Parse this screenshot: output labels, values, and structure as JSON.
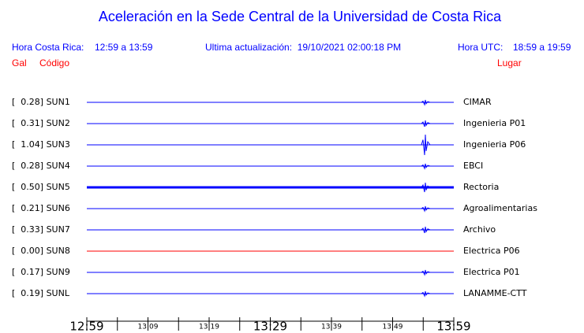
{
  "header": {
    "title": "Aceleración en la Sede Central de la Universidad de Costa Rica",
    "local_label": "Hora Costa Rica:",
    "local_range": "12:59 a 13:59",
    "updated": "Ultima actualización:  19/10/2021 02:00:18 PM",
    "utc_label": "Hora UTC:",
    "utc_range": "18:59 a 19:59",
    "col_gal": "Gal",
    "col_code": "Código",
    "col_place": "Lugar"
  },
  "rows": [
    {
      "label": "[  0.28] SUN1",
      "place": "CIMAR"
    },
    {
      "label": "[  0.31] SUN2",
      "place": "Ingenieria P01"
    },
    {
      "label": "[  1.04] SUN3",
      "place": "Ingenieria P06"
    },
    {
      "label": "[  0.28] SUN4",
      "place": "EBCI"
    },
    {
      "label": "[  0.50] SUN5",
      "place": "Rectoria"
    },
    {
      "label": "[  0.21] SUN6",
      "place": "Agroalimentarias"
    },
    {
      "label": "[  0.33] SUN7",
      "place": "Archivo"
    },
    {
      "label": "[  0.00] SUN8",
      "place": "Electrica P06"
    },
    {
      "label": "[  0.17] SUN9",
      "place": "Electrica P01"
    },
    {
      "label": "[  0.19] SUNL",
      "place": "LANAMME-CTT"
    }
  ],
  "time_axis": [
    "12:59",
    "13:09",
    "13:19",
    "13:29",
    "13:39",
    "13:49",
    "13:59"
  ]
}
